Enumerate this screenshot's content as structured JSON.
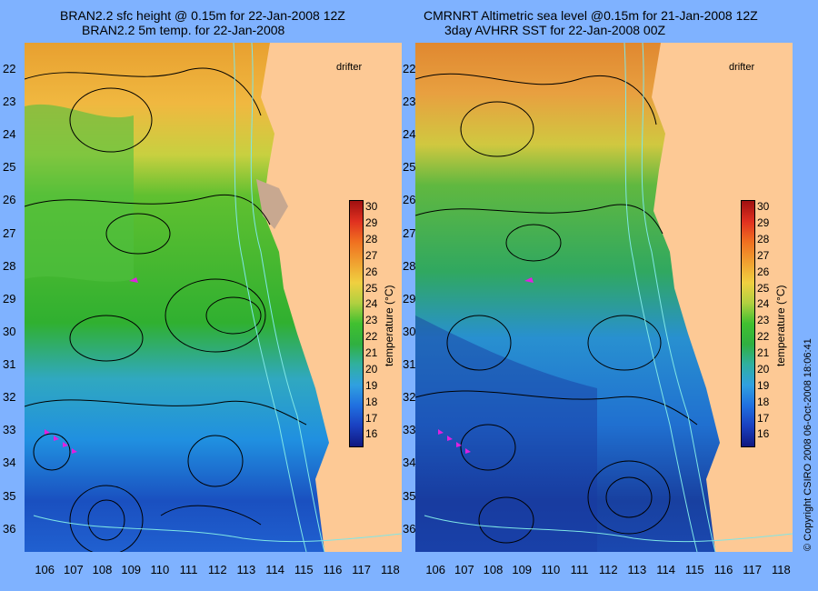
{
  "titles": {
    "left_line1": "BRAN2.2 sfc height @ 0.15m for 22-Jan-2008 12Z",
    "left_line2": "BRAN2.2 5m temp. for 22-Jan-2008",
    "right_line1": "CMRNRT Altimetric sea level  @0.15m  for 21-Jan-2008 12Z",
    "right_line2": "3day AVHRR SST for 22-Jan-2008 00Z"
  },
  "axes": {
    "lat_labels": [
      "22",
      "23",
      "24",
      "25",
      "26",
      "27",
      "28",
      "29",
      "30",
      "31",
      "32",
      "33",
      "34",
      "35",
      "36"
    ],
    "lon_labels": [
      "106",
      "107",
      "108",
      "109",
      "110",
      "111",
      "112",
      "113",
      "114",
      "115",
      "116",
      "117",
      "118"
    ],
    "lat_range": [
      21.2,
      36.7
    ],
    "lon_range": [
      105.3,
      118.4
    ]
  },
  "colorbar": {
    "ticks": [
      "30",
      "29",
      "28",
      "27",
      "26",
      "25",
      "24",
      "23",
      "22",
      "21",
      "20",
      "19",
      "18",
      "17",
      "16"
    ],
    "title": "temperature (°C)",
    "range": [
      15.3,
      30.4
    ]
  },
  "labels": {
    "drifter": "drifter",
    "copyright": "© Copyright CSIRO 2008   06-Oct-2008 18:06:41"
  },
  "colors": {
    "background": "#7fb2ff",
    "land": "#fdc995",
    "contour": "#000000",
    "bathymetry": "#7fe6e6",
    "drifter": "#e020e0"
  }
}
